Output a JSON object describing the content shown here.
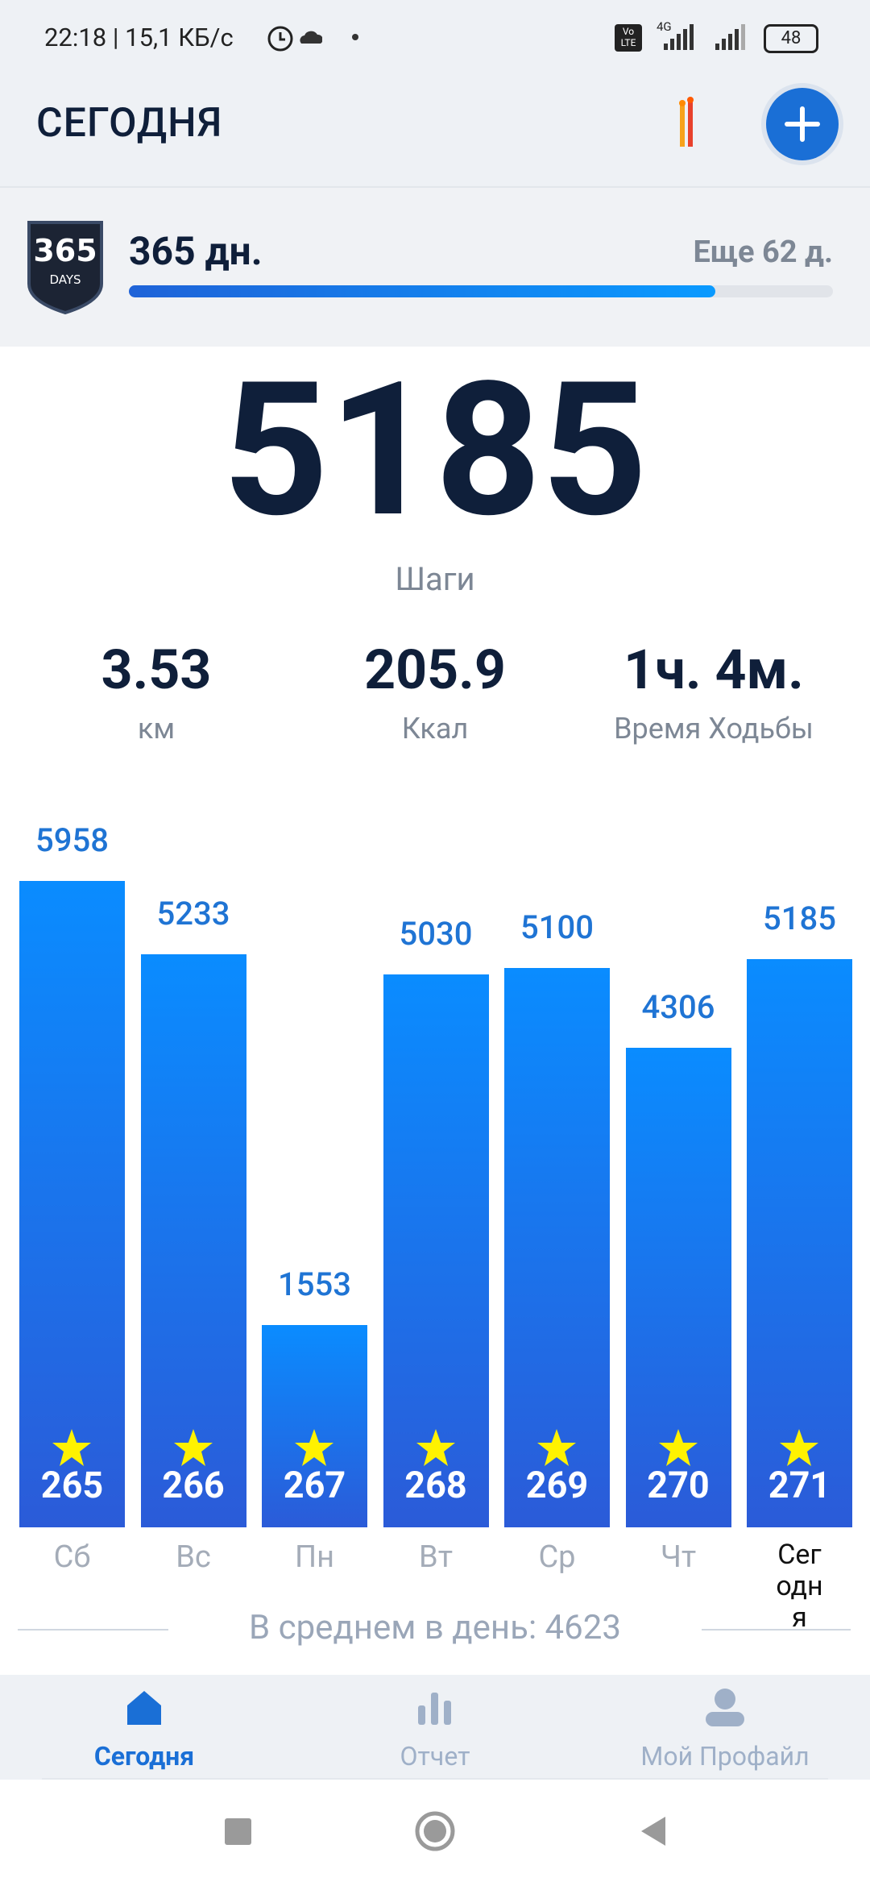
{
  "status_bar": {
    "time": "22:18 | 15,1 КБ/с",
    "volte": "Vo LTE",
    "network": "4G",
    "battery": "48"
  },
  "header": {
    "title": "СЕГОДНЯ"
  },
  "streak": {
    "badge_number": "365",
    "badge_text": "DAYS",
    "days": "365 дн.",
    "remaining": "Еще 62 д."
  },
  "summary": {
    "steps": "5185",
    "steps_label": "Шаги",
    "stats": [
      {
        "value": "3.53",
        "label": "км"
      },
      {
        "value": "205.9",
        "label": "Ккал"
      },
      {
        "value": "1ч. 4м.",
        "label": "Время Ходьбы"
      }
    ]
  },
  "chart_data": {
    "type": "bar",
    "categories": [
      "Сб",
      "Вс",
      "Пн",
      "Вт",
      "Ср",
      "Чт",
      "Сегодня"
    ],
    "values": [
      5958,
      5233,
      1553,
      5030,
      5100,
      4306,
      5185
    ],
    "badges": [
      265,
      266,
      267,
      268,
      269,
      270,
      271
    ],
    "color": "#0a8cff",
    "ylim": [
      -450,
      6400
    ],
    "average_label": "В среднем в день:",
    "average": 4623
  },
  "nav": {
    "items": [
      "Сегодня",
      "Отчет",
      "Мой Профайл"
    ]
  }
}
